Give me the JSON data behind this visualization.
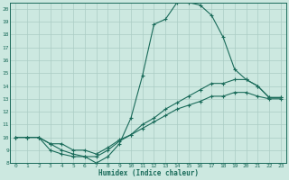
{
  "xlabel": "Humidex (Indice chaleur)",
  "background_color": "#cce8e0",
  "line_color": "#1a6b5a",
  "grid_color": "#aaccc4",
  "xlim": [
    -0.5,
    23.5
  ],
  "ylim": [
    8,
    20.5
  ],
  "xticks": [
    0,
    1,
    2,
    3,
    4,
    5,
    6,
    7,
    8,
    9,
    10,
    11,
    12,
    13,
    14,
    15,
    16,
    17,
    18,
    19,
    20,
    21,
    22,
    23
  ],
  "yticks": [
    8,
    9,
    10,
    11,
    12,
    13,
    14,
    15,
    16,
    17,
    18,
    19,
    20
  ],
  "line1_x": [
    0,
    1,
    2,
    3,
    4,
    5,
    6,
    7,
    8,
    9,
    10,
    11,
    12,
    13,
    14,
    15,
    16,
    17,
    18,
    19,
    20,
    21,
    22,
    23
  ],
  "line1_y": [
    10,
    10,
    10,
    9,
    8.7,
    8.5,
    8.5,
    8,
    8.5,
    9.5,
    11.5,
    14.8,
    18.8,
    19.2,
    20.5,
    20.5,
    20.3,
    19.5,
    17.8,
    15.3,
    14.5,
    14,
    13.1,
    13.1
  ],
  "line2_x": [
    0,
    1,
    2,
    3,
    4,
    5,
    6,
    7,
    8,
    9,
    10,
    11,
    12,
    13,
    14,
    15,
    16,
    17,
    18,
    19,
    20,
    21,
    22,
    23
  ],
  "line2_y": [
    10,
    10,
    10,
    9.5,
    9,
    8.7,
    8.5,
    8.5,
    9,
    9.7,
    10.2,
    11.0,
    11.5,
    12.2,
    12.7,
    13.2,
    13.7,
    14.2,
    14.2,
    14.5,
    14.5,
    14.0,
    13.1,
    13.1
  ],
  "line3_x": [
    0,
    1,
    2,
    3,
    4,
    5,
    6,
    7,
    8,
    9,
    10,
    11,
    12,
    13,
    14,
    15,
    16,
    17,
    18,
    19,
    20,
    21,
    22,
    23
  ],
  "line3_y": [
    10,
    10,
    10,
    9.5,
    9.5,
    9.0,
    9.0,
    8.7,
    9.2,
    9.8,
    10.2,
    10.7,
    11.2,
    11.7,
    12.2,
    12.5,
    12.8,
    13.2,
    13.2,
    13.5,
    13.5,
    13.2,
    13.0,
    13.0
  ]
}
